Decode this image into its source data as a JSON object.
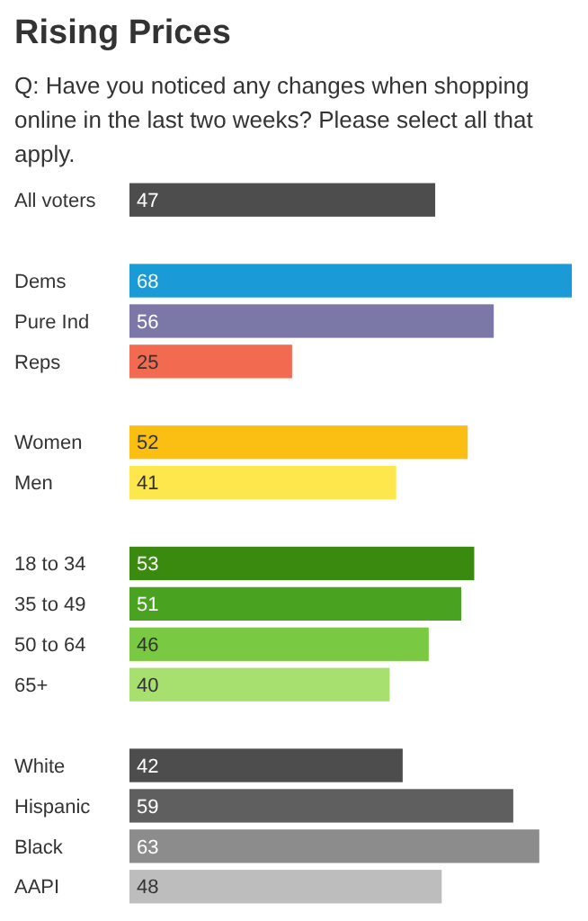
{
  "chart_data": {
    "type": "bar",
    "orientation": "horizontal",
    "title": "Rising Prices",
    "subtitle": "Q: Have you noticed any changes when shopping online in the last two weeks? Please select all that apply.",
    "categories": [
      "All voters",
      null,
      "Dems",
      "Pure Ind",
      "Reps",
      null,
      "Women",
      "Men",
      null,
      "18 to 34",
      "35 to 49",
      "50 to 64",
      "65+",
      null,
      "White",
      "Hispanic",
      "Black",
      "AAPI"
    ],
    "values": [
      47,
      null,
      68,
      56,
      25,
      null,
      52,
      41,
      null,
      53,
      51,
      46,
      40,
      null,
      42,
      59,
      63,
      48
    ],
    "colors": [
      "#4d4d4d",
      null,
      "#1a9ad6",
      "#7b78a8",
      "#f26b50",
      null,
      "#fbbf14",
      "#fde74c",
      null,
      "#3a8a0f",
      "#4aa320",
      "#7ac943",
      "#a8e070",
      null,
      "#4d4d4d",
      "#5f5f5f",
      "#8c8c8c",
      "#bdbdbd"
    ],
    "data_labels": true
  }
}
